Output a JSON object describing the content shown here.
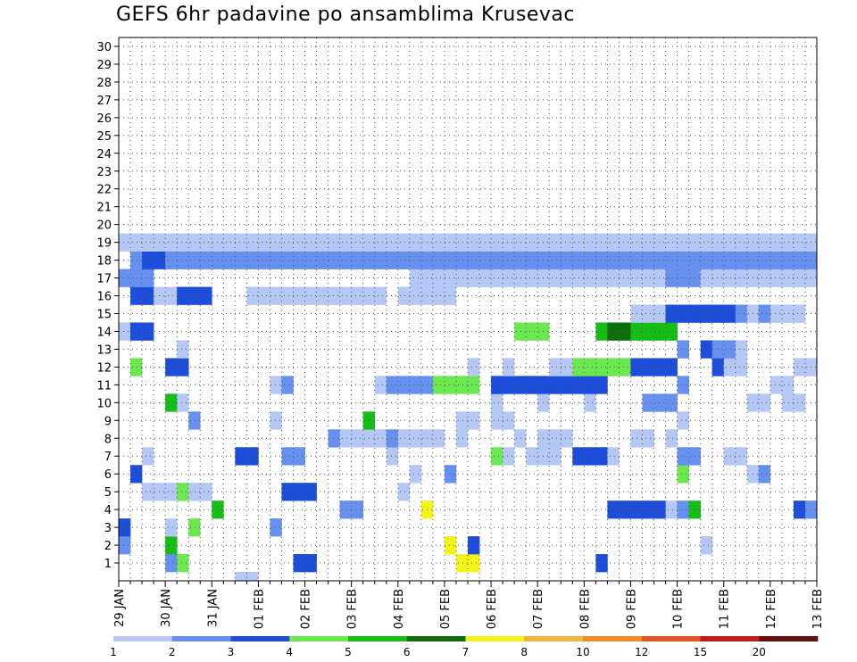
{
  "chart_data": {
    "type": "heatmap",
    "title": "GEFS 6hr padavine po ansamblima Krusevac",
    "xlabel": "",
    "ylabel": "",
    "yticks": [
      "1",
      "2",
      "3",
      "4",
      "5",
      "6",
      "7",
      "8",
      "9",
      "10",
      "11",
      "12",
      "13",
      "14",
      "15",
      "16",
      "17",
      "18",
      "19",
      "20",
      "21",
      "22",
      "23",
      "24",
      "25",
      "26",
      "27",
      "28",
      "29",
      "30"
    ],
    "ylim": [
      0,
      30
    ],
    "xticks": [
      "29 JAN",
      "30 JAN",
      "31 JAN",
      "01 FEB",
      "02 FEB",
      "03 FEB",
      "04 FEB",
      "05 FEB",
      "06 FEB",
      "07 FEB",
      "08 FEB",
      "09 FEB",
      "10 FEB",
      "11 FEB",
      "12 FEB",
      "13 FEB"
    ],
    "x_step_per_day": 4,
    "grid": true,
    "legend": {
      "placement": "bottom",
      "labels": [
        "1",
        "2",
        "3",
        "4",
        "5",
        "6",
        "7",
        "8",
        "10",
        "12",
        "15",
        "20"
      ],
      "colors": [
        "#b4c7f5",
        "#6690ef",
        "#1c4ddb",
        "#6be84f",
        "#15be15",
        "#0b6e0b",
        "#f4f417",
        "#f6b03a",
        "#f38c1e",
        "#e45020",
        "#c41a1a",
        "#6b0c0c"
      ]
    },
    "cells": [
      [
        10,
        0,
        1
      ],
      [
        11,
        0,
        1
      ],
      [
        4,
        1,
        2
      ],
      [
        5,
        1,
        4
      ],
      [
        15,
        1,
        3
      ],
      [
        16,
        1,
        3
      ],
      [
        29,
        1,
        7
      ],
      [
        30,
        1,
        7
      ],
      [
        41,
        1,
        3
      ],
      [
        0,
        2,
        2
      ],
      [
        4,
        2,
        5
      ],
      [
        28,
        2,
        7
      ],
      [
        30,
        2,
        3
      ],
      [
        50,
        2,
        1
      ],
      [
        0,
        3,
        3
      ],
      [
        4,
        3,
        1
      ],
      [
        6,
        3,
        4
      ],
      [
        13,
        3,
        2
      ],
      [
        8,
        4,
        5
      ],
      [
        19,
        4,
        2
      ],
      [
        20,
        4,
        2
      ],
      [
        26,
        4,
        7
      ],
      [
        42,
        4,
        3
      ],
      [
        43,
        4,
        3
      ],
      [
        44,
        4,
        3
      ],
      [
        45,
        4,
        3
      ],
      [
        46,
        4,
        3
      ],
      [
        47,
        4,
        1
      ],
      [
        48,
        4,
        2
      ],
      [
        49,
        4,
        5
      ],
      [
        58,
        4,
        3
      ],
      [
        59,
        4,
        2
      ],
      [
        2,
        5,
        1
      ],
      [
        3,
        5,
        1
      ],
      [
        4,
        5,
        1
      ],
      [
        5,
        5,
        4
      ],
      [
        6,
        5,
        1
      ],
      [
        7,
        5,
        1
      ],
      [
        14,
        5,
        3
      ],
      [
        15,
        5,
        3
      ],
      [
        16,
        5,
        3
      ],
      [
        24,
        5,
        1
      ],
      [
        1,
        6,
        3
      ],
      [
        25,
        6,
        1
      ],
      [
        28,
        6,
        2
      ],
      [
        48,
        6,
        4
      ],
      [
        54,
        6,
        1
      ],
      [
        55,
        6,
        2
      ],
      [
        2,
        7,
        1
      ],
      [
        10,
        7,
        3
      ],
      [
        11,
        7,
        3
      ],
      [
        14,
        7,
        2
      ],
      [
        15,
        7,
        2
      ],
      [
        23,
        7,
        1
      ],
      [
        32,
        7,
        4
      ],
      [
        33,
        7,
        1
      ],
      [
        35,
        7,
        1
      ],
      [
        36,
        7,
        1
      ],
      [
        37,
        7,
        1
      ],
      [
        39,
        7,
        3
      ],
      [
        40,
        7,
        3
      ],
      [
        41,
        7,
        3
      ],
      [
        42,
        7,
        1
      ],
      [
        48,
        7,
        2
      ],
      [
        49,
        7,
        2
      ],
      [
        52,
        7,
        1
      ],
      [
        53,
        7,
        1
      ],
      [
        18,
        8,
        2
      ],
      [
        19,
        8,
        1
      ],
      [
        20,
        8,
        1
      ],
      [
        21,
        8,
        1
      ],
      [
        22,
        8,
        1
      ],
      [
        23,
        8,
        2
      ],
      [
        24,
        8,
        1
      ],
      [
        25,
        8,
        1
      ],
      [
        26,
        8,
        1
      ],
      [
        27,
        8,
        1
      ],
      [
        29,
        8,
        1
      ],
      [
        34,
        8,
        1
      ],
      [
        36,
        8,
        1
      ],
      [
        37,
        8,
        1
      ],
      [
        38,
        8,
        1
      ],
      [
        44,
        8,
        1
      ],
      [
        45,
        8,
        1
      ],
      [
        47,
        8,
        1
      ],
      [
        6,
        9,
        2
      ],
      [
        13,
        9,
        1
      ],
      [
        21,
        9,
        5
      ],
      [
        29,
        9,
        1
      ],
      [
        30,
        9,
        1
      ],
      [
        32,
        9,
        1
      ],
      [
        33,
        9,
        1
      ],
      [
        48,
        9,
        1
      ],
      [
        4,
        10,
        5
      ],
      [
        5,
        10,
        1
      ],
      [
        32,
        10,
        1
      ],
      [
        36,
        10,
        1
      ],
      [
        40,
        10,
        1
      ],
      [
        45,
        10,
        2
      ],
      [
        46,
        10,
        2
      ],
      [
        47,
        10,
        2
      ],
      [
        54,
        10,
        1
      ],
      [
        55,
        10,
        1
      ],
      [
        57,
        10,
        1
      ],
      [
        58,
        10,
        1
      ],
      [
        13,
        11,
        1
      ],
      [
        14,
        11,
        2
      ],
      [
        22,
        11,
        1
      ],
      [
        23,
        11,
        2
      ],
      [
        24,
        11,
        2
      ],
      [
        25,
        11,
        2
      ],
      [
        26,
        11,
        2
      ],
      [
        27,
        11,
        4
      ],
      [
        28,
        11,
        4
      ],
      [
        29,
        11,
        4
      ],
      [
        30,
        11,
        4
      ],
      [
        32,
        11,
        3
      ],
      [
        33,
        11,
        3
      ],
      [
        34,
        11,
        3
      ],
      [
        35,
        11,
        3
      ],
      [
        36,
        11,
        3
      ],
      [
        37,
        11,
        3
      ],
      [
        38,
        11,
        3
      ],
      [
        39,
        11,
        3
      ],
      [
        40,
        11,
        3
      ],
      [
        41,
        11,
        3
      ],
      [
        48,
        11,
        2
      ],
      [
        56,
        11,
        1
      ],
      [
        57,
        11,
        1
      ],
      [
        1,
        12,
        4
      ],
      [
        4,
        12,
        3
      ],
      [
        5,
        12,
        3
      ],
      [
        30,
        12,
        1
      ],
      [
        33,
        12,
        1
      ],
      [
        37,
        12,
        1
      ],
      [
        38,
        12,
        1
      ],
      [
        39,
        12,
        4
      ],
      [
        40,
        12,
        4
      ],
      [
        41,
        12,
        4
      ],
      [
        42,
        12,
        4
      ],
      [
        43,
        12,
        4
      ],
      [
        44,
        12,
        3
      ],
      [
        45,
        12,
        3
      ],
      [
        46,
        12,
        3
      ],
      [
        47,
        12,
        3
      ],
      [
        51,
        12,
        3
      ],
      [
        52,
        12,
        1
      ],
      [
        53,
        12,
        1
      ],
      [
        58,
        12,
        1
      ],
      [
        59,
        12,
        1
      ],
      [
        5,
        13,
        1
      ],
      [
        48,
        13,
        2
      ],
      [
        50,
        13,
        3
      ],
      [
        51,
        13,
        2
      ],
      [
        52,
        13,
        2
      ],
      [
        53,
        13,
        1
      ],
      [
        0,
        14,
        1
      ],
      [
        1,
        14,
        3
      ],
      [
        2,
        14,
        3
      ],
      [
        34,
        14,
        4
      ],
      [
        35,
        14,
        4
      ],
      [
        36,
        14,
        4
      ],
      [
        41,
        14,
        5
      ],
      [
        42,
        14,
        6
      ],
      [
        43,
        14,
        6
      ],
      [
        44,
        14,
        5
      ],
      [
        45,
        14,
        5
      ],
      [
        46,
        14,
        5
      ],
      [
        47,
        14,
        5
      ],
      [
        44,
        15,
        1
      ],
      [
        45,
        15,
        1
      ],
      [
        46,
        15,
        1
      ],
      [
        47,
        15,
        3
      ],
      [
        48,
        15,
        3
      ],
      [
        49,
        15,
        3
      ],
      [
        50,
        15,
        3
      ],
      [
        51,
        15,
        3
      ],
      [
        52,
        15,
        3
      ],
      [
        53,
        15,
        2
      ],
      [
        54,
        15,
        1
      ],
      [
        55,
        15,
        2
      ],
      [
        56,
        15,
        1
      ],
      [
        57,
        15,
        1
      ],
      [
        58,
        15,
        1
      ],
      [
        1,
        16,
        3
      ],
      [
        2,
        16,
        3
      ],
      [
        3,
        16,
        1
      ],
      [
        4,
        16,
        1
      ],
      [
        5,
        16,
        3
      ],
      [
        6,
        16,
        3
      ],
      [
        7,
        16,
        3
      ],
      [
        11,
        16,
        1
      ],
      [
        12,
        16,
        1
      ],
      [
        13,
        16,
        1
      ],
      [
        14,
        16,
        1
      ],
      [
        15,
        16,
        1
      ],
      [
        16,
        16,
        1
      ],
      [
        17,
        16,
        1
      ],
      [
        18,
        16,
        1
      ],
      [
        19,
        16,
        1
      ],
      [
        20,
        16,
        1
      ],
      [
        21,
        16,
        1
      ],
      [
        22,
        16,
        1
      ],
      [
        24,
        16,
        1
      ],
      [
        25,
        16,
        1
      ],
      [
        26,
        16,
        1
      ],
      [
        27,
        16,
        1
      ],
      [
        28,
        16,
        1
      ],
      [
        0,
        17,
        2
      ],
      [
        1,
        17,
        2
      ],
      [
        2,
        17,
        2
      ],
      [
        25,
        17,
        1
      ],
      [
        26,
        17,
        1
      ],
      [
        27,
        17,
        1
      ],
      [
        28,
        17,
        1
      ],
      [
        29,
        17,
        1
      ],
      [
        30,
        17,
        1
      ],
      [
        31,
        17,
        1
      ],
      [
        32,
        17,
        1
      ],
      [
        33,
        17,
        1
      ],
      [
        34,
        17,
        1
      ],
      [
        35,
        17,
        1
      ],
      [
        36,
        17,
        1
      ],
      [
        37,
        17,
        1
      ],
      [
        38,
        17,
        1
      ],
      [
        39,
        17,
        1
      ],
      [
        40,
        17,
        1
      ],
      [
        41,
        17,
        1
      ],
      [
        42,
        17,
        1
      ],
      [
        43,
        17,
        1
      ],
      [
        44,
        17,
        1
      ],
      [
        45,
        17,
        1
      ],
      [
        46,
        17,
        1
      ],
      [
        47,
        17,
        2
      ],
      [
        48,
        17,
        2
      ],
      [
        49,
        17,
        2
      ],
      [
        50,
        17,
        1
      ],
      [
        51,
        17,
        1
      ],
      [
        52,
        17,
        1
      ],
      [
        53,
        17,
        1
      ],
      [
        54,
        17,
        1
      ],
      [
        55,
        17,
        1
      ],
      [
        56,
        17,
        1
      ],
      [
        57,
        17,
        1
      ],
      [
        58,
        17,
        1
      ],
      [
        59,
        17,
        1
      ],
      [
        1,
        18,
        2
      ],
      [
        2,
        18,
        3
      ],
      [
        3,
        18,
        3
      ],
      [
        4,
        18,
        2
      ],
      [
        5,
        18,
        2
      ],
      [
        6,
        18,
        2
      ],
      [
        7,
        18,
        2
      ],
      [
        8,
        18,
        2
      ],
      [
        9,
        18,
        2
      ],
      [
        10,
        18,
        2
      ],
      [
        11,
        18,
        2
      ],
      [
        12,
        18,
        2
      ],
      [
        13,
        18,
        2
      ],
      [
        14,
        18,
        2
      ],
      [
        15,
        18,
        2
      ],
      [
        16,
        18,
        2
      ],
      [
        17,
        18,
        2
      ],
      [
        18,
        18,
        2
      ],
      [
        19,
        18,
        2
      ],
      [
        20,
        18,
        2
      ],
      [
        21,
        18,
        2
      ],
      [
        22,
        18,
        2
      ],
      [
        23,
        18,
        2
      ],
      [
        24,
        18,
        2
      ],
      [
        25,
        18,
        2
      ],
      [
        26,
        18,
        2
      ],
      [
        27,
        18,
        2
      ],
      [
        28,
        18,
        2
      ],
      [
        29,
        18,
        2
      ],
      [
        30,
        18,
        2
      ],
      [
        31,
        18,
        2
      ],
      [
        32,
        18,
        2
      ],
      [
        33,
        18,
        2
      ],
      [
        34,
        18,
        2
      ],
      [
        35,
        18,
        2
      ],
      [
        36,
        18,
        2
      ],
      [
        37,
        18,
        2
      ],
      [
        38,
        18,
        2
      ],
      [
        39,
        18,
        2
      ],
      [
        40,
        18,
        2
      ],
      [
        41,
        18,
        2
      ],
      [
        42,
        18,
        2
      ],
      [
        43,
        18,
        2
      ],
      [
        44,
        18,
        2
      ],
      [
        45,
        18,
        2
      ],
      [
        46,
        18,
        2
      ],
      [
        47,
        18,
        2
      ],
      [
        48,
        18,
        2
      ],
      [
        49,
        18,
        2
      ],
      [
        50,
        18,
        2
      ],
      [
        51,
        18,
        2
      ],
      [
        52,
        18,
        2
      ],
      [
        53,
        18,
        2
      ],
      [
        54,
        18,
        2
      ],
      [
        55,
        18,
        2
      ],
      [
        56,
        18,
        2
      ],
      [
        57,
        18,
        2
      ],
      [
        58,
        18,
        2
      ],
      [
        59,
        18,
        2
      ],
      [
        0,
        19,
        1
      ],
      [
        1,
        19,
        1
      ],
      [
        2,
        19,
        1
      ],
      [
        3,
        19,
        1
      ],
      [
        4,
        19,
        1
      ],
      [
        5,
        19,
        1
      ],
      [
        6,
        19,
        1
      ],
      [
        7,
        19,
        1
      ],
      [
        8,
        19,
        1
      ],
      [
        9,
        19,
        1
      ],
      [
        10,
        19,
        1
      ],
      [
        11,
        19,
        1
      ],
      [
        12,
        19,
        1
      ],
      [
        13,
        19,
        1
      ],
      [
        14,
        19,
        1
      ],
      [
        15,
        19,
        1
      ],
      [
        16,
        19,
        1
      ],
      [
        17,
        19,
        1
      ],
      [
        18,
        19,
        1
      ],
      [
        19,
        19,
        1
      ],
      [
        20,
        19,
        1
      ],
      [
        21,
        19,
        1
      ],
      [
        22,
        19,
        1
      ],
      [
        23,
        19,
        1
      ],
      [
        24,
        19,
        1
      ],
      [
        25,
        19,
        1
      ],
      [
        26,
        19,
        1
      ],
      [
        27,
        19,
        1
      ],
      [
        28,
        19,
        1
      ],
      [
        29,
        19,
        1
      ],
      [
        30,
        19,
        1
      ],
      [
        31,
        19,
        1
      ],
      [
        32,
        19,
        1
      ],
      [
        33,
        19,
        1
      ],
      [
        34,
        19,
        1
      ],
      [
        35,
        19,
        1
      ],
      [
        36,
        19,
        1
      ],
      [
        37,
        19,
        1
      ],
      [
        38,
        19,
        1
      ],
      [
        39,
        19,
        1
      ],
      [
        40,
        19,
        1
      ],
      [
        41,
        19,
        1
      ],
      [
        42,
        19,
        1
      ],
      [
        43,
        19,
        1
      ],
      [
        44,
        19,
        1
      ],
      [
        45,
        19,
        1
      ],
      [
        46,
        19,
        1
      ],
      [
        47,
        19,
        1
      ],
      [
        48,
        19,
        1
      ],
      [
        49,
        19,
        1
      ],
      [
        50,
        19,
        1
      ],
      [
        51,
        19,
        1
      ],
      [
        52,
        19,
        1
      ],
      [
        53,
        19,
        1
      ],
      [
        54,
        19,
        1
      ],
      [
        55,
        19,
        1
      ],
      [
        56,
        19,
        1
      ],
      [
        57,
        19,
        1
      ],
      [
        58,
        19,
        1
      ],
      [
        59,
        19,
        1
      ]
    ]
  }
}
